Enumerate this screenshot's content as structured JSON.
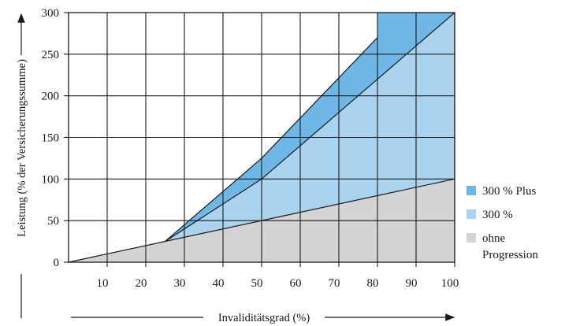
{
  "chart_data": {
    "type": "area",
    "xlabel": "Invaliditätsgrad (%)",
    "ylabel": "Leistung (% der Versicherungssumme)",
    "xlim": [
      0,
      100
    ],
    "ylim": [
      0,
      300
    ],
    "x_ticks": [
      10,
      20,
      30,
      40,
      50,
      60,
      70,
      80,
      90,
      100
    ],
    "y_ticks": [
      0,
      50,
      100,
      150,
      200,
      250,
      300
    ],
    "grid": true,
    "legend_position": "right",
    "series": [
      {
        "name": "ohne Progression",
        "color": "#d4d4d6",
        "points": [
          [
            0,
            0
          ],
          [
            100,
            100
          ]
        ]
      },
      {
        "name": "300 %",
        "color": "#a9d3ef",
        "points": [
          [
            25,
            25
          ],
          [
            50,
            100
          ],
          [
            100,
            300
          ]
        ]
      },
      {
        "name": "300 % Plus",
        "color": "#6db8e6",
        "points": [
          [
            25,
            25
          ],
          [
            50,
            125
          ],
          [
            80,
            270
          ],
          [
            80,
            300
          ],
          [
            100,
            300
          ]
        ]
      }
    ],
    "legend": [
      {
        "label": "300 % Plus",
        "color": "#6db8e6"
      },
      {
        "label": "300 %",
        "color": "#a9d3ef"
      },
      {
        "label": "ohne",
        "color": "#d4d4d6"
      },
      {
        "label": "Progression",
        "color": ""
      }
    ]
  }
}
